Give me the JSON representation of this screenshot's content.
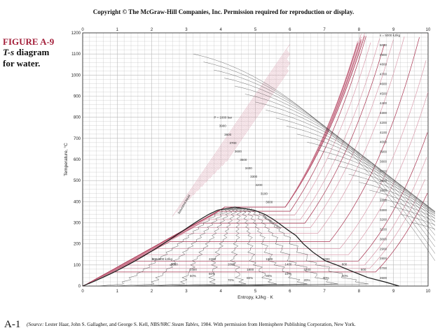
{
  "header": {
    "copyright": "Copyright © The McGraw-Hill Companies, Inc. Permission required for reproduction or display."
  },
  "figure": {
    "number": "FIGURE A-9",
    "caption_italic": "T-s",
    "caption_rest": " diagram",
    "caption_line2": "for water."
  },
  "footer": {
    "page_number": "A-1",
    "source_open": "(Source: ",
    "source_authors": "Lester Haar, John S. Gallagher, and George S. Kell, ",
    "source_title": "NBS/NRC Steam Tables,",
    "source_rest": "  1984. With permission from Hemisphere Publishing Corporation, New York."
  },
  "colors": {
    "grid": "#b9b9b9",
    "isobar": "#a8324f",
    "isobar_light": "#d99aab",
    "dome": "#1a1a1a",
    "isenthalpic": "#333333"
  },
  "chart_data": {
    "type": "line",
    "title": "",
    "xlabel": "Entropy, kJ/kg · K",
    "ylabel": "Temperature, °C",
    "xlim": [
      0,
      10
    ],
    "ylim": [
      0,
      1200
    ],
    "x_ticks": [
      0,
      1,
      2,
      3,
      4,
      5,
      6,
      7,
      8,
      9,
      10
    ],
    "y_ticks": [
      0,
      100,
      200,
      300,
      400,
      500,
      600,
      700,
      800,
      900,
      1000,
      1100,
      1200
    ],
    "y_tick_labels": [
      "0",
      "100",
      "200",
      "300",
      "400",
      "500",
      "600",
      "700",
      "800",
      "900",
      "1000",
      "1100",
      "1200"
    ],
    "grid": true,
    "series": [
      {
        "name": "Saturated liquid",
        "x": [
          0.0,
          0.297,
          0.572,
          0.831,
          1.075,
          1.307,
          1.527,
          1.739,
          1.942,
          2.139,
          2.331,
          2.518,
          2.702,
          2.884,
          3.066,
          3.252,
          3.445,
          3.656,
          3.911,
          4.41
        ],
        "y": [
          0.01,
          20,
          40,
          60,
          80,
          100,
          120,
          140,
          160,
          180,
          200,
          220,
          240,
          260,
          280,
          300,
          320,
          340,
          360,
          373.95
        ]
      },
      {
        "name": "Saturated vapor",
        "x": [
          4.41,
          4.96,
          5.27,
          5.48,
          5.66,
          5.82,
          5.99,
          6.17,
          6.39,
          6.67,
          7.02,
          7.35,
          7.8,
          8.26,
          8.74,
          9.16
        ],
        "y": [
          373.95,
          360,
          340,
          320,
          300,
          280,
          260,
          240,
          200,
          160,
          120,
          100,
          70,
          40,
          20,
          0.01
        ]
      }
    ],
    "curve_labels": [
      "Saturated liquid",
      "Saturated vapor"
    ],
    "labels_right": [
      "s = 5000 kJ/kg",
      "5000",
      "4900",
      "4800",
      "4700",
      "4600",
      "4500",
      "4400",
      "4300",
      "4200",
      "4100",
      "4000",
      "3900",
      "3800",
      "3700",
      "3600",
      "3500",
      "3400",
      "3300",
      "3200",
      "3100",
      "3000",
      "2900",
      "2800",
      "2700",
      "2600"
    ],
    "labels_upper": [
      "P = 1000 bar",
      "3900",
      "3800",
      "3700",
      "3600",
      "3500",
      "3400",
      "3300",
      "3200",
      "3100",
      "3000"
    ],
    "labels_lower": [
      "h = 2800 kJ/kg",
      "2600",
      "2400",
      "2200",
      "2000",
      "1800",
      "1600",
      "1400",
      "1200",
      "1000",
      "800",
      "600",
      "400",
      "200",
      "50%",
      "60%",
      "70%",
      "80%",
      "90%",
      "10%",
      "20%",
      "30%",
      "40%"
    ]
  }
}
